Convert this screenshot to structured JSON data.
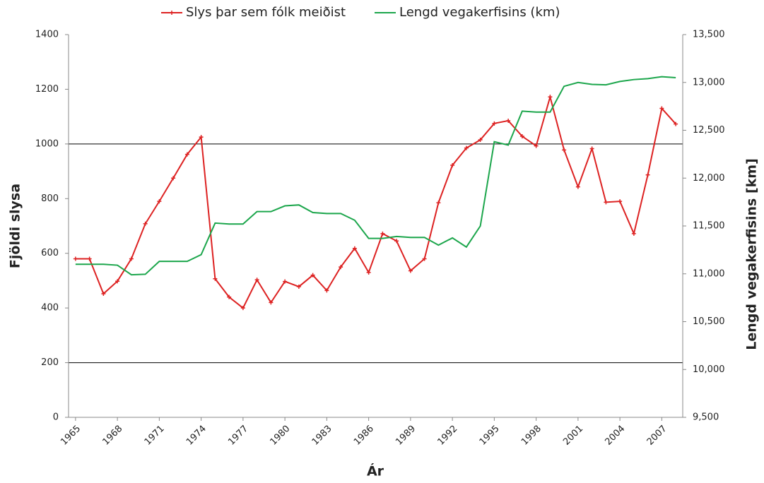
{
  "chart_data": {
    "type": "line",
    "x_label": "Ár",
    "y_label": "Fjöldi slysa",
    "y2_label": "Lengd vegakerfisins [km]",
    "x": [
      1965,
      1966,
      1967,
      1968,
      1969,
      1970,
      1971,
      1972,
      1973,
      1974,
      1975,
      1976,
      1977,
      1978,
      1979,
      1980,
      1981,
      1982,
      1983,
      1984,
      1985,
      1986,
      1987,
      1988,
      1989,
      1990,
      1991,
      1992,
      1993,
      1994,
      1995,
      1996,
      1997,
      1998,
      1999,
      2000,
      2001,
      2002,
      2003,
      2004,
      2005,
      2006,
      2007,
      2008
    ],
    "xlim": [
      1964.5,
      2008.5
    ],
    "xticks": [
      1965,
      1968,
      1971,
      1974,
      1977,
      1980,
      1983,
      1986,
      1989,
      1992,
      1995,
      1998,
      2001,
      2004,
      2007
    ],
    "ylim": [
      0,
      1400
    ],
    "yticks": [
      0,
      200,
      400,
      600,
      800,
      1000,
      1200,
      1400
    ],
    "y2lim": [
      9500,
      13500
    ],
    "y2ticks": [
      {
        "value": 9500,
        "label": "9,500"
      },
      {
        "value": 10000,
        "label": "10,000"
      },
      {
        "value": 10500,
        "label": "10,500"
      },
      {
        "value": 11000,
        "label": "11,000"
      },
      {
        "value": 11500,
        "label": "11,500"
      },
      {
        "value": 12000,
        "label": "12,000"
      },
      {
        "value": 12500,
        "label": "12,500"
      },
      {
        "value": 13000,
        "label": "13,000"
      },
      {
        "value": 13500,
        "label": "13,500"
      }
    ],
    "grid": [
      200,
      1000
    ],
    "legend": "top",
    "series": [
      {
        "name": "Slys þar sem fólk meiðist",
        "color": "#dd2222",
        "marker": "plus",
        "values": [
          580,
          580,
          452,
          498,
          580,
          708,
          790,
          875,
          962,
          1025,
          507,
          440,
          400,
          503,
          420,
          497,
          478,
          520,
          464,
          550,
          618,
          530,
          672,
          645,
          536,
          580,
          785,
          922,
          985,
          1015,
          1075,
          1085,
          1028,
          993,
          1172,
          978,
          843,
          983,
          787,
          790,
          672,
          887,
          1130,
          1073
        ]
      },
      {
        "name": "Lengd vegakerfisins (km)",
        "color": "#1ca64c",
        "axis": "y2",
        "values": [
          11100,
          11100,
          11100,
          11090,
          10990,
          10995,
          11130,
          11130,
          11130,
          11200,
          11530,
          11520,
          11520,
          11650,
          11650,
          11710,
          11720,
          11640,
          11630,
          11630,
          11560,
          11370,
          11370,
          11390,
          11380,
          11380,
          11300,
          11375,
          11280,
          11500,
          12380,
          12345,
          12700,
          12690,
          12690,
          12960,
          13000,
          12980,
          12975,
          13010,
          13030,
          13040,
          13060,
          13050
        ]
      }
    ]
  }
}
